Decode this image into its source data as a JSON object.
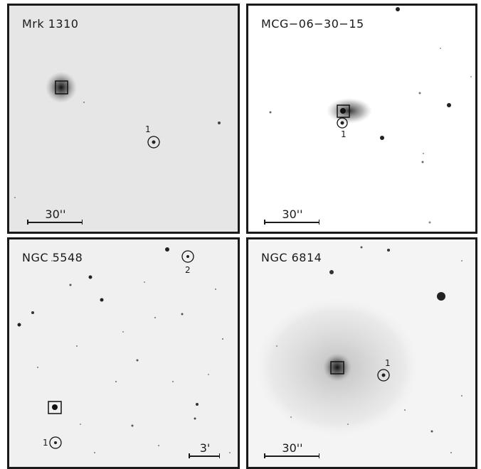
{
  "panels": [
    {
      "title": "Mrk 1310",
      "scale": "30''",
      "markers": [
        "1"
      ]
    },
    {
      "title": "MCG−06−30−15",
      "scale": "30''",
      "markers": [
        "1"
      ]
    },
    {
      "title": "NGC 5548",
      "scale": "3'",
      "markers": [
        "2",
        "1"
      ]
    },
    {
      "title": "NGC 6814",
      "scale": "30''",
      "markers": [
        "1"
      ]
    }
  ],
  "colors": {
    "frame": "#1a1a1a",
    "sky_light": "#ffffff",
    "sky_grey": "#e6e6e6"
  }
}
